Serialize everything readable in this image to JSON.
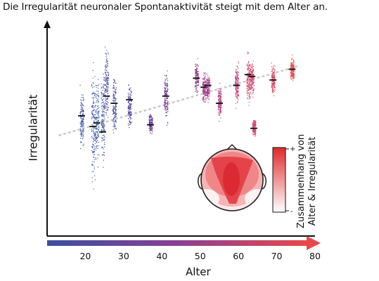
{
  "title": "Die Irregularität neuronaler Spontanaktivität steigt mit dem Alter an.",
  "chart_data": {
    "type": "scatter",
    "title": "Die Irregularität neuronaler Spontanaktivität steigt mit dem Alter an.",
    "xlabel": "Alter",
    "ylabel": "Irregularität",
    "xlim": [
      10,
      80
    ],
    "x_ticks": [
      20,
      30,
      40,
      50,
      60,
      70,
      80
    ],
    "x_tick_labels": [
      "20",
      "30",
      "40",
      "50",
      "60",
      "70",
      "80"
    ],
    "y_ticks": [],
    "grid": false,
    "x_axis_gradient": [
      "#3b4fa0",
      "#e8484a"
    ],
    "trend_line": {
      "style": "dashed",
      "color": "#c8c8c8",
      "direction": "increasing"
    },
    "subjects": [
      {
        "age": 19,
        "median": 0.53,
        "low": 0.3,
        "high": 0.72,
        "color": "#3f57a6"
      },
      {
        "age": 22,
        "median": 0.47,
        "low": 0.08,
        "high": 0.88,
        "color": "#4060b0"
      },
      {
        "age": 23,
        "median": 0.49,
        "low": 0.2,
        "high": 0.8,
        "color": "#3f5aa8"
      },
      {
        "age": 24.5,
        "median": 0.44,
        "low": 0.18,
        "high": 0.86,
        "color": "#3e55a5"
      },
      {
        "age": 25.5,
        "median": 0.64,
        "low": 0.42,
        "high": 0.96,
        "color": "#4a4ea6"
      },
      {
        "age": 27.5,
        "median": 0.6,
        "low": 0.38,
        "high": 0.8,
        "color": "#4d4ba5"
      },
      {
        "age": 31.5,
        "median": 0.62,
        "low": 0.44,
        "high": 0.73,
        "color": "#5548a3"
      },
      {
        "age": 37,
        "median": 0.48,
        "low": 0.41,
        "high": 0.57,
        "color": "#6f3f9c"
      },
      {
        "age": 41,
        "median": 0.64,
        "low": 0.46,
        "high": 0.82,
        "color": "#7a3e98"
      },
      {
        "age": 49,
        "median": 0.74,
        "low": 0.64,
        "high": 0.86,
        "color": "#9a3f8f"
      },
      {
        "age": 51,
        "median": 0.69,
        "low": 0.57,
        "high": 0.8,
        "color": "#a13e8b"
      },
      {
        "age": 52,
        "median": 0.7,
        "low": 0.6,
        "high": 0.78,
        "color": "#a63e88"
      },
      {
        "age": 55,
        "median": 0.6,
        "low": 0.48,
        "high": 0.72,
        "color": "#b33f81"
      },
      {
        "age": 59.5,
        "median": 0.7,
        "low": 0.56,
        "high": 0.86,
        "color": "#c4417a"
      },
      {
        "age": 62.5,
        "median": 0.76,
        "low": 0.56,
        "high": 0.92,
        "color": "#d04471"
      },
      {
        "age": 63.5,
        "median": 0.75,
        "low": 0.62,
        "high": 0.86,
        "color": "#d4456d"
      },
      {
        "age": 64,
        "median": 0.46,
        "low": 0.4,
        "high": 0.54,
        "color": "#d6466b"
      },
      {
        "age": 69,
        "median": 0.73,
        "low": 0.62,
        "high": 0.84,
        "color": "#e0475f"
      },
      {
        "age": 74,
        "median": 0.79,
        "low": 0.7,
        "high": 0.88,
        "color": "#e8484a"
      }
    ],
    "inset": {
      "type": "heatmap",
      "description_colorbar_label": [
        "Zusammenhang von",
        "Alter & Irregularität"
      ],
      "colorbar_top": "+",
      "colorbar_bottom": "-",
      "colors": [
        "#ffffff",
        "#e8484a"
      ]
    }
  }
}
